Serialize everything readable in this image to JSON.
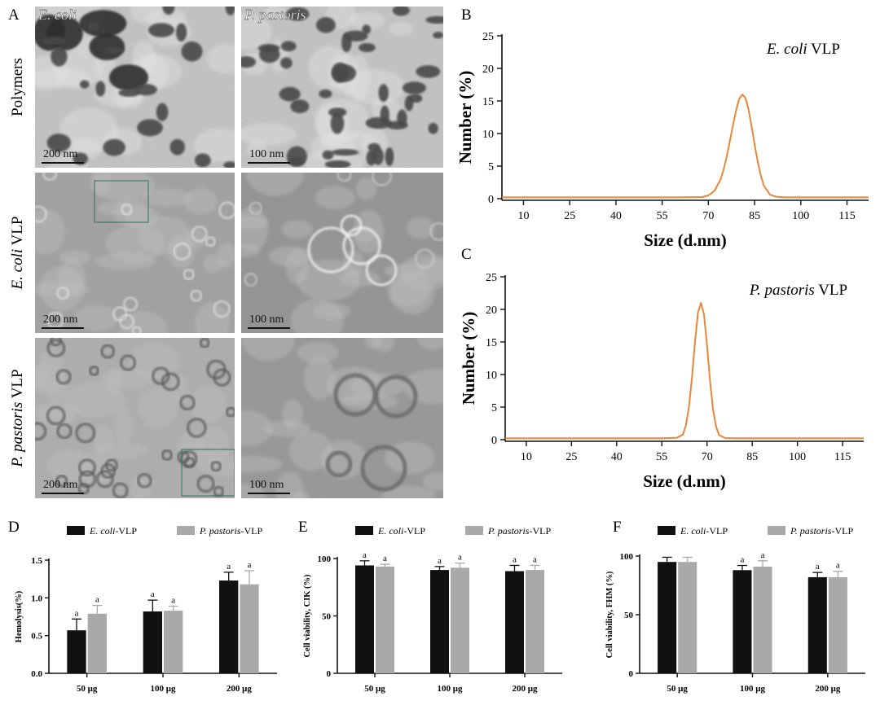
{
  "panel_a": {
    "letter": "A",
    "column_labels": [
      "E. coli",
      "P. pastoris"
    ],
    "row_labels": [
      "Polymers",
      "E. coli VLP",
      "P. pastoris VLP"
    ],
    "row_label_parts": [
      {
        "italic": "",
        "roman": "Polymers"
      },
      {
        "italic": "E. coli",
        "roman": " VLP"
      },
      {
        "italic": "P. pastoris",
        "roman": " VLP"
      }
    ],
    "scale_bars": [
      [
        "200 nm",
        "100 nm"
      ],
      [
        "200 nm",
        "100 nm"
      ],
      [
        "200 nm",
        "100 nm"
      ]
    ]
  },
  "chart_data": [
    {
      "panel": "B",
      "type": "line",
      "annotation": {
        "italic": "E. coli",
        "roman": " VLP"
      },
      "xlabel": "Size (d.nm)",
      "ylabel": "Number (%)",
      "x_ticks": [
        10,
        25,
        40,
        55,
        70,
        85,
        100,
        115
      ],
      "y_ticks": [
        0,
        5,
        10,
        15,
        20,
        25
      ],
      "xlim": [
        3,
        122
      ],
      "ylim": [
        0,
        25
      ],
      "grid": false,
      "color": "#e8863a",
      "x": [
        3,
        60,
        68,
        70,
        72,
        74,
        75,
        76,
        77,
        78,
        79,
        80,
        81,
        82,
        83,
        84,
        85,
        86,
        87,
        88,
        90,
        92,
        95,
        122
      ],
      "y": [
        0.2,
        0.2,
        0.25,
        0.5,
        1.2,
        3.0,
        4.6,
        6.6,
        8.9,
        11.3,
        13.6,
        15.3,
        16.0,
        15.5,
        13.8,
        11.2,
        8.3,
        5.7,
        3.6,
        2.0,
        0.6,
        0.3,
        0.2,
        0.2
      ]
    },
    {
      "panel": "C",
      "type": "line",
      "annotation": {
        "italic": "P. pastoris",
        "roman": " VLP"
      },
      "xlabel": "Size (d.nm)",
      "ylabel": "Number (%)",
      "x_ticks": [
        10,
        25,
        40,
        55,
        70,
        85,
        100,
        115
      ],
      "y_ticks": [
        0,
        5,
        10,
        15,
        20,
        25
      ],
      "xlim": [
        3,
        122
      ],
      "ylim": [
        0,
        25
      ],
      "grid": false,
      "color": "#e8863a",
      "x": [
        3,
        55,
        60,
        62,
        63,
        64,
        65,
        66,
        67,
        68,
        69,
        70,
        71,
        72,
        73,
        74,
        76,
        80,
        122
      ],
      "y": [
        0.2,
        0.2,
        0.3,
        0.8,
        2.2,
        5.0,
        9.5,
        15.0,
        19.5,
        21.0,
        19.2,
        14.5,
        9.0,
        4.6,
        2.0,
        0.7,
        0.25,
        0.2,
        0.2
      ]
    },
    {
      "panel": "D",
      "type": "bar",
      "ylabel": "Hemolysis(%)",
      "categories": [
        "50 μg",
        "100 μg",
        "200 μg"
      ],
      "y_ticks": [
        "0.0",
        "0.5",
        "1.0",
        "1.5"
      ],
      "ylim": [
        0,
        1.5
      ],
      "legend_position": "top",
      "series": [
        {
          "label": {
            "italic": "E. coli",
            "roman": "-VLP"
          },
          "color": "#111111",
          "values": [
            0.57,
            0.82,
            1.23
          ],
          "errors": [
            0.15,
            0.15,
            0.11
          ],
          "letters": [
            "a",
            "a",
            "a"
          ]
        },
        {
          "label": {
            "italic": "P. pastoris",
            "roman": "-VLP"
          },
          "color": "#a9a9a9",
          "values": [
            0.79,
            0.83,
            1.18
          ],
          "errors": [
            0.11,
            0.06,
            0.18
          ],
          "letters": [
            "a",
            "a",
            "a"
          ]
        }
      ]
    },
    {
      "panel": "E",
      "type": "bar",
      "ylabel": "Cell viability, CIK (%)",
      "categories": [
        "50 μg",
        "100 μg",
        "200 μg"
      ],
      "y_ticks": [
        "0",
        "50",
        "100"
      ],
      "ylim": [
        0,
        100
      ],
      "legend_position": "top",
      "series": [
        {
          "label": {
            "italic": "E. coli",
            "roman": "-VLP"
          },
          "color": "#111111",
          "values": [
            94,
            90,
            89
          ],
          "errors": [
            4,
            3,
            5
          ],
          "letters": [
            "a",
            "a",
            "a"
          ]
        },
        {
          "label": {
            "italic": "P. pastoris",
            "roman": "-VLP"
          },
          "color": "#a9a9a9",
          "values": [
            93,
            92,
            90
          ],
          "errors": [
            2,
            4,
            4
          ],
          "letters": [
            "a",
            "a",
            "a"
          ]
        }
      ]
    },
    {
      "panel": "F",
      "type": "bar",
      "ylabel": "Cell viability, FHM (%)",
      "categories": [
        "50 μg",
        "100 μg",
        "200 μg"
      ],
      "y_ticks": [
        "0",
        "50",
        "100"
      ],
      "ylim": [
        0,
        100
      ],
      "legend_position": "top",
      "series": [
        {
          "label": {
            "italic": "E. coli",
            "roman": "-VLP"
          },
          "color": "#111111",
          "values": [
            95,
            88,
            82
          ],
          "errors": [
            4,
            4,
            4
          ],
          "letters": [
            "",
            "a",
            "a"
          ]
        },
        {
          "label": {
            "italic": "P. pastoris",
            "roman": "-VLP"
          },
          "color": "#a9a9a9",
          "values": [
            95,
            91,
            82
          ],
          "errors": [
            4,
            5,
            5
          ],
          "letters": [
            "",
            "a",
            "a"
          ]
        }
      ]
    }
  ]
}
